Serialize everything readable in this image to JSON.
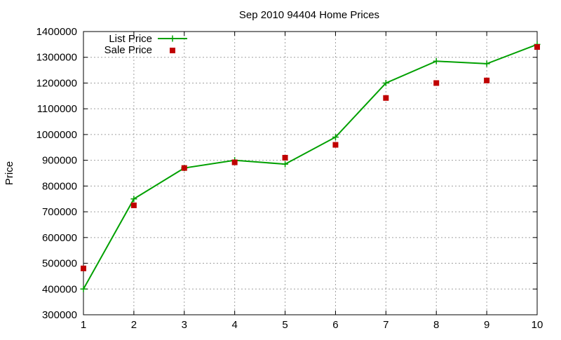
{
  "chart_data": {
    "type": "line",
    "title": "Sep 2010 94404 Home Prices",
    "xlabel": "",
    "ylabel": "Price",
    "x": [
      1,
      2,
      3,
      4,
      5,
      6,
      7,
      8,
      9,
      10
    ],
    "xlim": [
      1,
      10
    ],
    "ylim": [
      300000,
      1400000
    ],
    "x_ticks": [
      "1",
      "2",
      "3",
      "4",
      "5",
      "6",
      "7",
      "8",
      "9",
      "10"
    ],
    "y_ticks": [
      "300000",
      "400000",
      "500000",
      "600000",
      "700000",
      "800000",
      "900000",
      "1000000",
      "1100000",
      "1200000",
      "1300000",
      "1400000"
    ],
    "grid": true,
    "legend_position": "top-left",
    "series": [
      {
        "name": "List Price",
        "style": "linespoints",
        "marker": "plus",
        "color": "#00a000",
        "values": [
          400000,
          750000,
          870000,
          900000,
          885000,
          990000,
          1200000,
          1285000,
          1275000,
          1350000
        ]
      },
      {
        "name": "Sale Price",
        "style": "points",
        "marker": "square",
        "color": "#c00000",
        "values": [
          480000,
          725000,
          870000,
          892000,
          910000,
          960000,
          1142000,
          1200000,
          1210000,
          1340000
        ]
      }
    ]
  }
}
